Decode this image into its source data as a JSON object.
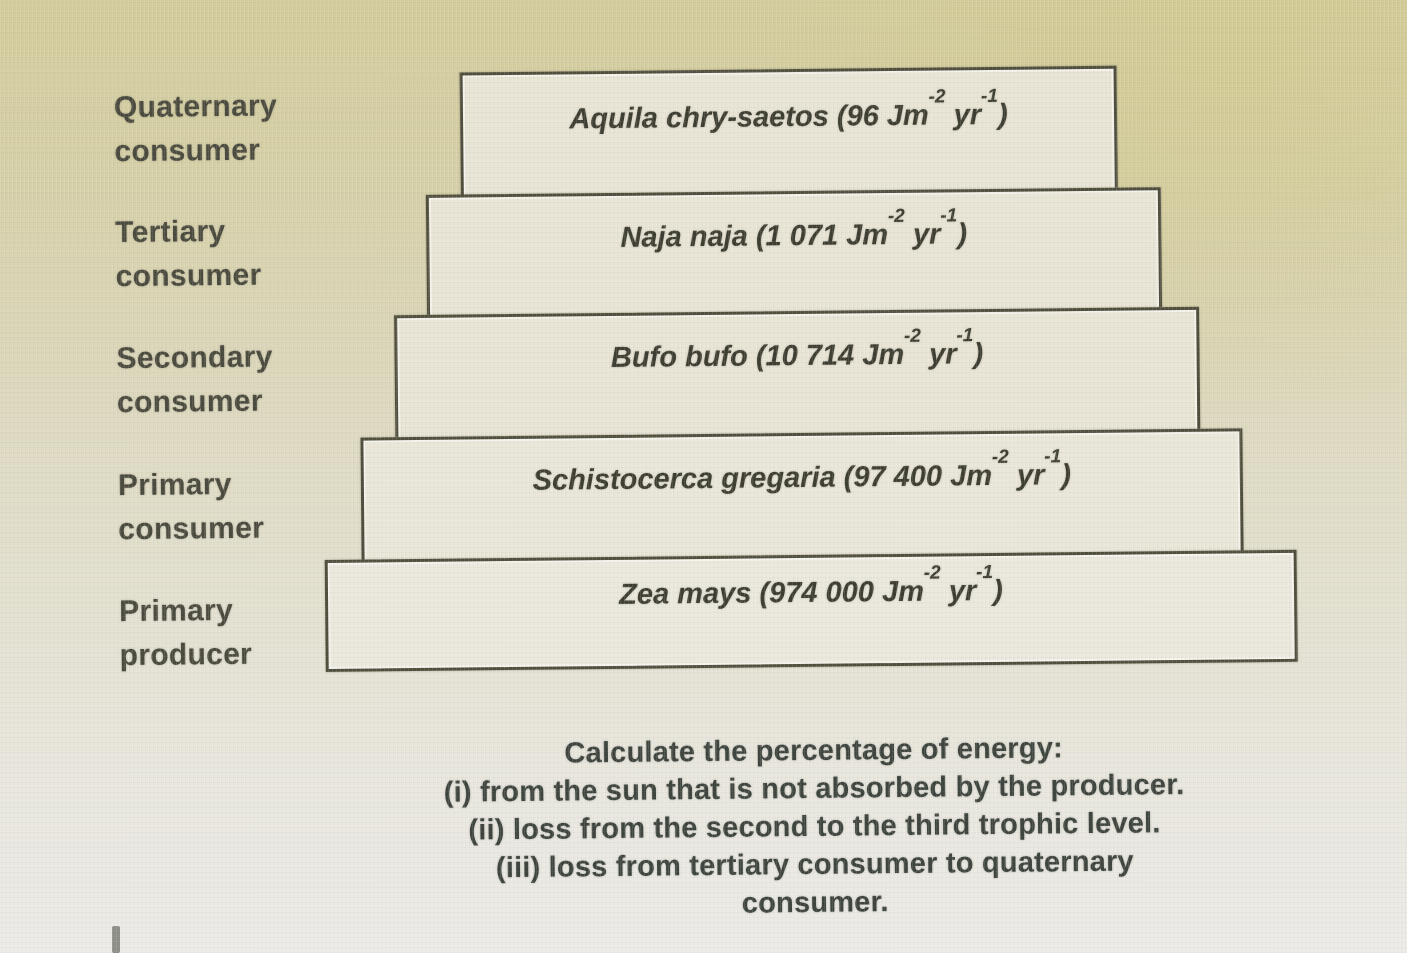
{
  "colors": {
    "photo_background_top": "#d3cc9d",
    "photo_background_bottom": "#ecebe7",
    "box_fill": "#e9e5d6",
    "box_border": "#4f4e3c",
    "ink": "#3d3d31"
  },
  "diagram": {
    "type": "energy-pyramid",
    "left_labels": [
      {
        "text": "Quaternary\nconsumer"
      },
      {
        "text": "Tertiary\nconsumer"
      },
      {
        "text": "Secondary\nconsumer"
      },
      {
        "text": "Primary\nconsumer"
      },
      {
        "text": "Primary\nproducer"
      }
    ],
    "levels": [
      {
        "species": "Aquila chry-saetos",
        "energy_value": "96",
        "text_pre": "Aquila chry-saetos (96 Jm",
        "sup_a": "-2",
        "text_mid": " yr",
        "sup_b": "-1",
        "text_post": ")"
      },
      {
        "species": "Naja naja",
        "energy_value": "1 071",
        "text_pre": "Naja naja (1 071 Jm",
        "sup_a": "-2",
        "text_mid": " yr",
        "sup_b": "-1",
        "text_post": ")"
      },
      {
        "species": "Bufo bufo",
        "energy_value": "10 714",
        "text_pre": "Bufo bufo (10 714 Jm",
        "sup_a": "-2",
        "text_mid": " yr",
        "sup_b": "-1",
        "text_post": ")"
      },
      {
        "species": "Schistocerca gregaria",
        "energy_value": "97 400",
        "text_pre": "Schistocerca gregaria (97 400 Jm",
        "sup_a": "-2",
        "text_mid": " yr",
        "sup_b": "-1",
        "text_post": ")"
      },
      {
        "species": "Zea mays",
        "energy_value": "974 000",
        "text_pre": "Zea mays (974 000 Jm",
        "sup_a": "-2",
        "text_mid": " yr",
        "sup_b": "-1",
        "text_post": ")"
      }
    ]
  },
  "question": {
    "lines": [
      "Calculate the percentage of energy:",
      "(i) from the sun that is not absorbed by the producer.",
      "(ii) loss from the second to the third trophic level.",
      "(iii) loss from tertiary consumer to quaternary",
      "consumer."
    ]
  }
}
